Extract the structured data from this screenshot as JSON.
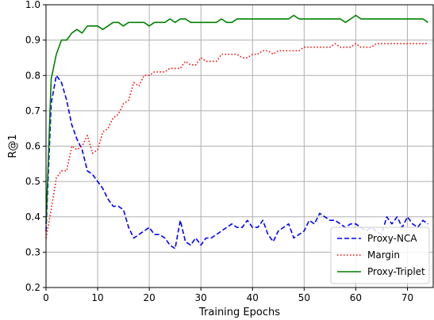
{
  "chart_data": {
    "type": "line",
    "xlabel": "Training Epochs",
    "ylabel": "R@1",
    "xlim": [
      0,
      75
    ],
    "ylim": [
      0.2,
      1.0
    ],
    "xticks": [
      0,
      10,
      20,
      30,
      40,
      50,
      60,
      70
    ],
    "yticks": [
      0.2,
      0.3,
      0.4,
      0.5,
      0.6,
      0.7,
      0.8,
      0.9,
      1.0
    ],
    "grid": true,
    "legend_position": "lower-right",
    "series": [
      {
        "name": "Proxy-NCA",
        "color": "#0000ff",
        "style": "dashed",
        "x": [
          0,
          1,
          2,
          3,
          4,
          5,
          6,
          7,
          8,
          9,
          10,
          11,
          12,
          13,
          14,
          15,
          16,
          17,
          18,
          19,
          20,
          21,
          22,
          23,
          24,
          25,
          26,
          27,
          28,
          29,
          30,
          31,
          32,
          33,
          34,
          35,
          36,
          37,
          38,
          39,
          40,
          41,
          42,
          43,
          44,
          45,
          46,
          47,
          48,
          49,
          50,
          51,
          52,
          53,
          54,
          55,
          56,
          57,
          58,
          59,
          60,
          61,
          62,
          63,
          64,
          65,
          66,
          67,
          68,
          69,
          70,
          71,
          72,
          73,
          74
        ],
        "y": [
          0.36,
          0.72,
          0.8,
          0.78,
          0.73,
          0.66,
          0.62,
          0.59,
          0.53,
          0.52,
          0.5,
          0.48,
          0.45,
          0.43,
          0.43,
          0.42,
          0.37,
          0.34,
          0.35,
          0.36,
          0.37,
          0.35,
          0.35,
          0.34,
          0.32,
          0.31,
          0.39,
          0.33,
          0.32,
          0.34,
          0.32,
          0.34,
          0.34,
          0.35,
          0.36,
          0.37,
          0.38,
          0.37,
          0.37,
          0.39,
          0.37,
          0.37,
          0.39,
          0.35,
          0.33,
          0.36,
          0.37,
          0.38,
          0.34,
          0.35,
          0.36,
          0.39,
          0.38,
          0.41,
          0.4,
          0.39,
          0.39,
          0.38,
          0.37,
          0.38,
          0.38,
          0.37,
          0.36,
          0.37,
          0.36,
          0.35,
          0.4,
          0.38,
          0.4,
          0.37,
          0.4,
          0.38,
          0.37,
          0.39,
          0.38
        ]
      },
      {
        "name": "Margin",
        "color": "#ff0000",
        "style": "dotted",
        "x": [
          0,
          1,
          2,
          3,
          4,
          5,
          6,
          7,
          8,
          9,
          10,
          11,
          12,
          13,
          14,
          15,
          16,
          17,
          18,
          19,
          20,
          21,
          22,
          23,
          24,
          25,
          26,
          27,
          28,
          29,
          30,
          31,
          32,
          33,
          34,
          35,
          36,
          37,
          38,
          39,
          40,
          41,
          42,
          43,
          44,
          45,
          46,
          47,
          48,
          49,
          50,
          51,
          52,
          53,
          54,
          55,
          56,
          57,
          58,
          59,
          60,
          61,
          62,
          63,
          64,
          65,
          66,
          67,
          68,
          69,
          70,
          71,
          72,
          73,
          74
        ],
        "y": [
          0.34,
          0.42,
          0.51,
          0.53,
          0.53,
          0.6,
          0.59,
          0.6,
          0.63,
          0.58,
          0.59,
          0.64,
          0.65,
          0.68,
          0.69,
          0.72,
          0.73,
          0.78,
          0.77,
          0.8,
          0.8,
          0.81,
          0.81,
          0.81,
          0.82,
          0.82,
          0.82,
          0.84,
          0.83,
          0.83,
          0.85,
          0.84,
          0.84,
          0.84,
          0.86,
          0.86,
          0.86,
          0.86,
          0.85,
          0.85,
          0.86,
          0.86,
          0.87,
          0.87,
          0.86,
          0.87,
          0.87,
          0.87,
          0.87,
          0.87,
          0.88,
          0.88,
          0.88,
          0.88,
          0.88,
          0.88,
          0.89,
          0.88,
          0.88,
          0.88,
          0.89,
          0.88,
          0.88,
          0.88,
          0.89,
          0.89,
          0.89,
          0.89,
          0.89,
          0.89,
          0.89,
          0.89,
          0.89,
          0.89,
          0.89
        ]
      },
      {
        "name": "Proxy-Triplet",
        "color": "#008000",
        "style": "solid",
        "x": [
          0,
          1,
          2,
          3,
          4,
          5,
          6,
          7,
          8,
          9,
          10,
          11,
          12,
          13,
          14,
          15,
          16,
          17,
          18,
          19,
          20,
          21,
          22,
          23,
          24,
          25,
          26,
          27,
          28,
          29,
          30,
          31,
          32,
          33,
          34,
          35,
          36,
          37,
          38,
          39,
          40,
          41,
          42,
          43,
          44,
          45,
          46,
          47,
          48,
          49,
          50,
          51,
          52,
          53,
          54,
          55,
          56,
          57,
          58,
          59,
          60,
          61,
          62,
          63,
          64,
          65,
          66,
          67,
          68,
          69,
          70,
          71,
          72,
          73,
          74
        ],
        "y": [
          0.38,
          0.79,
          0.86,
          0.9,
          0.9,
          0.92,
          0.93,
          0.92,
          0.94,
          0.94,
          0.94,
          0.93,
          0.94,
          0.95,
          0.95,
          0.94,
          0.95,
          0.95,
          0.95,
          0.95,
          0.94,
          0.95,
          0.95,
          0.95,
          0.96,
          0.95,
          0.96,
          0.96,
          0.95,
          0.95,
          0.95,
          0.95,
          0.95,
          0.95,
          0.96,
          0.95,
          0.95,
          0.96,
          0.96,
          0.96,
          0.96,
          0.96,
          0.96,
          0.96,
          0.96,
          0.96,
          0.96,
          0.96,
          0.97,
          0.96,
          0.96,
          0.96,
          0.96,
          0.96,
          0.96,
          0.96,
          0.96,
          0.96,
          0.95,
          0.96,
          0.97,
          0.96,
          0.96,
          0.96,
          0.96,
          0.96,
          0.96,
          0.96,
          0.96,
          0.96,
          0.96,
          0.96,
          0.96,
          0.96,
          0.95
        ]
      }
    ]
  }
}
